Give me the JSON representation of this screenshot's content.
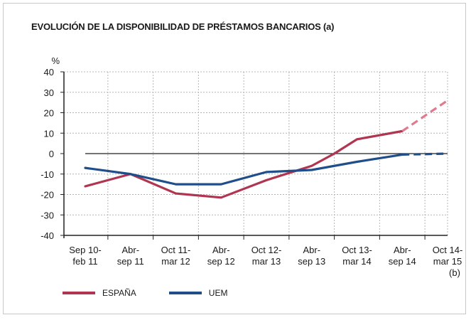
{
  "chart_data": {
    "type": "line",
    "title": "EVOLUCIÓN DE LA DISPONIBILIDAD DE PRÉSTAMOS BANCARIOS (a)",
    "ylabel": "%",
    "ylim": [
      -40,
      40
    ],
    "yticks": [
      40,
      30,
      20,
      10,
      0,
      -10,
      -20,
      -30,
      -40
    ],
    "grid": true,
    "legend_position": "bottom-left",
    "categories": [
      [
        "Sep 10-",
        "feb 11"
      ],
      [
        "Abr-",
        "sep 11"
      ],
      [
        "Oct 11-",
        "mar 12"
      ],
      [
        "Abr-",
        "sep 12"
      ],
      [
        "Oct 12-",
        "mar 13"
      ],
      [
        "Abr-",
        "sep 13"
      ],
      [
        "Oct 13-",
        "mar 14"
      ],
      [
        "Abr-",
        "sep 14"
      ],
      [
        "Oct 14-",
        "mar 15",
        "(b)"
      ]
    ],
    "series": [
      {
        "name": "ESPAÑA",
        "color": "#b03550",
        "forecast_color": "#e07a8d",
        "x": [
          0,
          0.5,
          1,
          2,
          3,
          4,
          5,
          5.5,
          6,
          6.5,
          7,
          8
        ],
        "values": [
          -16,
          -13,
          -10,
          -19.5,
          -21.5,
          -13,
          -6,
          0,
          7,
          9,
          11,
          26
        ],
        "forecast_from_index": 10
      },
      {
        "name": "UEM",
        "color": "#1f4e8a",
        "forecast_color": "#1f4e8a",
        "x": [
          0,
          1,
          2,
          3,
          4,
          5,
          6,
          7,
          8
        ],
        "values": [
          -7,
          -10,
          -15,
          -15,
          -9,
          -8,
          -4,
          -0.5,
          0
        ],
        "forecast_from_index": 7
      }
    ]
  }
}
